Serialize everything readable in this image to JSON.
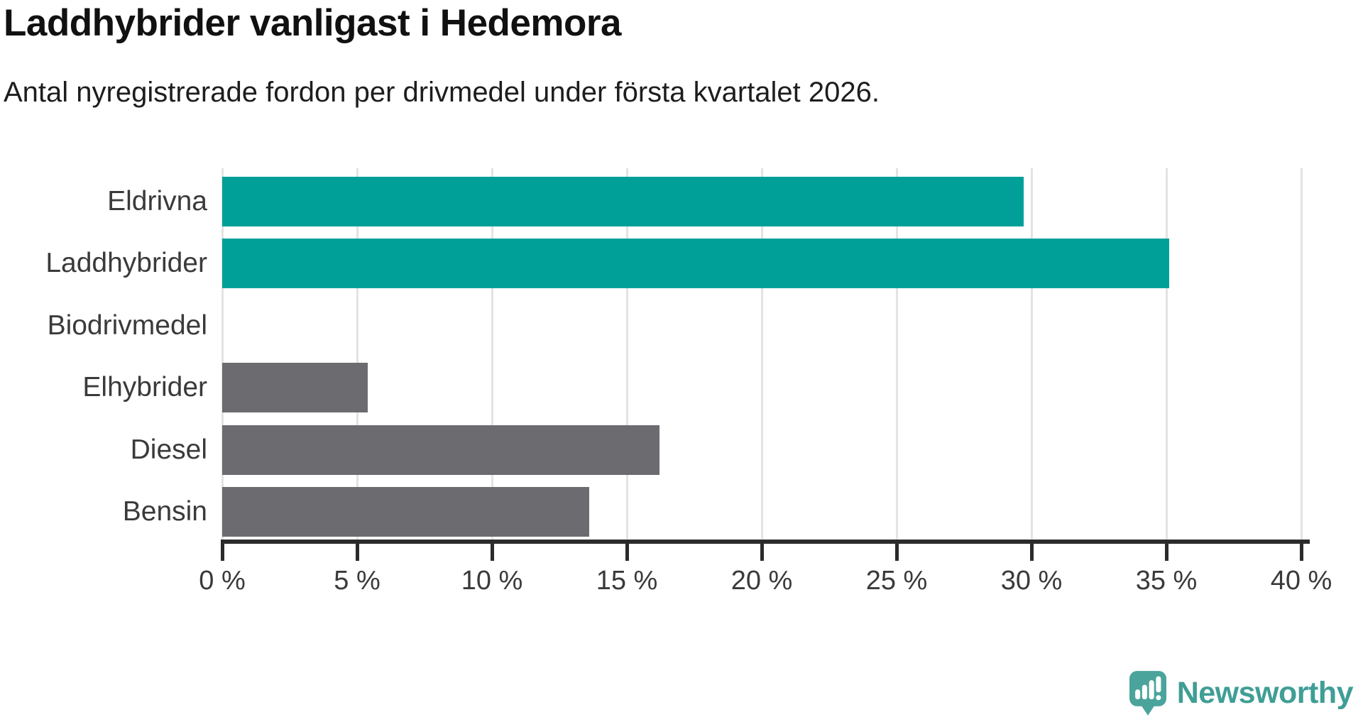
{
  "header": {
    "title": "Laddhybrider vanligast i Hedemora",
    "subtitle": "Antal nyregistrerade fordon per drivmedel under första kvartalet 2026."
  },
  "chart_data": {
    "type": "bar",
    "orientation": "horizontal",
    "title": "Laddhybrider vanligast i Hedemora",
    "subtitle": "Antal nyregistrerade fordon per drivmedel under första kvartalet 2026.",
    "categories": [
      "Eldrivna",
      "Laddhybrider",
      "Biodrivmedel",
      "Elhybrider",
      "Diesel",
      "Bensin"
    ],
    "values": [
      29.7,
      35.1,
      0,
      5.4,
      16.2,
      13.6
    ],
    "unit": "%",
    "bar_colors": [
      "#00a099",
      "#00a099",
      "#6b6b70",
      "#6b6b70",
      "#6b6b70",
      "#6b6b70"
    ],
    "xlim": [
      0,
      40
    ],
    "x_ticks": [
      0,
      5,
      10,
      15,
      20,
      25,
      30,
      35,
      40
    ],
    "x_tick_labels": [
      "0 %",
      "5 %",
      "10 %",
      "15 %",
      "20 %",
      "25 %",
      "30 %",
      "35 %",
      "40 %"
    ],
    "grid": true,
    "legend": "none"
  },
  "footer": {
    "brand": "Newsworthy"
  },
  "colors": {
    "accent": "#00a099",
    "muted": "#6b6b70",
    "grid": "#e3e3e3",
    "axis": "#2b2b2b",
    "text": "#3a3a3a",
    "logo": "#3f9e96",
    "logo_icon": "#4aa49c"
  }
}
